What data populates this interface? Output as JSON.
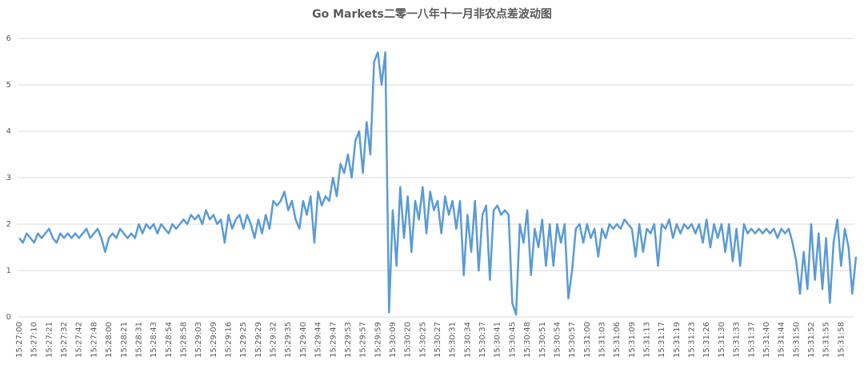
{
  "chart_data": {
    "type": "line",
    "title": "Go Markets二零一八年十一月非农点差波动图",
    "categories": [
      "15:27:00",
      null,
      null,
      null,
      "15:27:10",
      null,
      null,
      null,
      "15:27:21",
      null,
      null,
      null,
      "15:27:32",
      null,
      null,
      null,
      "15:27:42",
      null,
      null,
      null,
      "15:27:48",
      null,
      null,
      null,
      "15:28:00",
      null,
      null,
      null,
      "15:28:21",
      null,
      null,
      null,
      "15:28:31",
      null,
      null,
      null,
      "15:28:43",
      null,
      null,
      null,
      "15:28:54",
      null,
      null,
      null,
      "15:28:58",
      null,
      null,
      null,
      "15:29:03",
      null,
      null,
      null,
      "15:29:09",
      null,
      null,
      null,
      "15:29:16",
      null,
      null,
      null,
      "15:29:25",
      null,
      null,
      null,
      "15:29:29",
      null,
      null,
      null,
      "15:29:32",
      null,
      null,
      null,
      "15:29:35",
      null,
      null,
      null,
      "15:29:40",
      null,
      null,
      null,
      "15:29:44",
      null,
      null,
      null,
      "15:29:47",
      null,
      null,
      null,
      "15:29:53",
      null,
      null,
      null,
      "15:29:57",
      null,
      null,
      null,
      "15:29:59",
      null,
      null,
      null,
      "15:30:09",
      null,
      null,
      null,
      "15:30:20",
      null,
      null,
      null,
      "15:30:25",
      null,
      null,
      null,
      "15:30:27",
      null,
      null,
      null,
      "15:30:31",
      null,
      null,
      null,
      "15:30:34",
      null,
      null,
      null,
      "15:30:37",
      null,
      null,
      null,
      "15:30:41",
      null,
      null,
      null,
      "15:30:45",
      null,
      null,
      null,
      "15:30:48",
      null,
      null,
      null,
      "15:30:51",
      null,
      null,
      null,
      "15:30:54",
      null,
      null,
      null,
      "15:30:57",
      null,
      null,
      null,
      "15:31:00",
      null,
      null,
      null,
      "15:31:03",
      null,
      null,
      null,
      "15:31:06",
      null,
      null,
      null,
      "15:31:09",
      null,
      null,
      null,
      "15:31:13",
      null,
      null,
      null,
      "15:31:17",
      null,
      null,
      null,
      "15:31:19",
      null,
      null,
      null,
      "15:31:23",
      null,
      null,
      null,
      "15:31:26",
      null,
      null,
      null,
      "15:31:30",
      null,
      null,
      null,
      "15:31:33",
      null,
      null,
      null,
      "15:31:37",
      null,
      null,
      null,
      "15:31:40",
      null,
      null,
      null,
      "15:31:44",
      null,
      null,
      null,
      "15:31:50",
      null,
      null,
      null,
      "15:31:52",
      null,
      null,
      null,
      "15:31:55",
      null,
      null,
      null,
      "15:31:58",
      null,
      null,
      null,
      null
    ],
    "values": [
      1.7,
      1.6,
      1.8,
      1.7,
      1.6,
      1.8,
      1.7,
      1.8,
      1.9,
      1.7,
      1.6,
      1.8,
      1.7,
      1.8,
      1.7,
      1.8,
      1.7,
      1.8,
      1.9,
      1.7,
      1.8,
      1.9,
      1.7,
      1.4,
      1.7,
      1.8,
      1.7,
      1.9,
      1.8,
      1.7,
      1.8,
      1.7,
      2.0,
      1.8,
      2.0,
      1.9,
      2.0,
      1.8,
      2.0,
      1.9,
      1.8,
      2.0,
      1.9,
      2.0,
      2.1,
      2.0,
      2.2,
      2.1,
      2.2,
      2.0,
      2.3,
      2.1,
      2.2,
      2.0,
      2.1,
      1.6,
      2.2,
      1.9,
      2.1,
      2.2,
      1.9,
      2.2,
      2.0,
      1.7,
      2.1,
      1.8,
      2.2,
      1.9,
      2.5,
      2.4,
      2.5,
      2.7,
      2.3,
      2.5,
      2.1,
      1.9,
      2.5,
      2.2,
      2.6,
      1.6,
      2.7,
      2.4,
      2.6,
      2.5,
      3.0,
      2.6,
      3.3,
      3.1,
      3.5,
      3.0,
      3.8,
      4.0,
      3.1,
      4.2,
      3.5,
      5.5,
      5.7,
      5.0,
      5.7,
      0.1,
      2.3,
      1.1,
      2.8,
      1.7,
      2.6,
      1.4,
      2.5,
      2.1,
      2.8,
      1.8,
      2.7,
      2.3,
      2.5,
      1.8,
      2.6,
      2.2,
      2.5,
      1.9,
      2.5,
      0.9,
      2.2,
      1.4,
      2.5,
      1.0,
      2.2,
      2.4,
      0.8,
      2.3,
      2.4,
      2.2,
      2.3,
      2.2,
      0.3,
      0.05,
      2.0,
      1.6,
      2.3,
      0.9,
      1.9,
      1.5,
      2.1,
      1.1,
      2.0,
      1.1,
      2.0,
      1.6,
      2.0,
      0.4,
      1.0,
      1.9,
      2.0,
      1.6,
      2.0,
      1.7,
      1.9,
      1.3,
      1.9,
      1.7,
      2.0,
      1.9,
      2.0,
      1.9,
      2.1,
      2.0,
      1.9,
      1.3,
      2.0,
      1.4,
      1.9,
      1.8,
      2.0,
      1.1,
      2.0,
      1.9,
      2.1,
      1.7,
      2.0,
      1.8,
      2.0,
      1.9,
      2.0,
      1.8,
      2.0,
      1.6,
      2.1,
      1.5,
      2.0,
      1.7,
      2.0,
      1.4,
      2.0,
      1.2,
      1.9,
      1.1,
      2.0,
      1.8,
      1.9,
      1.8,
      1.9,
      1.8,
      1.9,
      1.8,
      1.9,
      1.7,
      1.9,
      1.8,
      1.9,
      1.6,
      1.2,
      0.5,
      1.4,
      0.6,
      2.0,
      0.8,
      1.8,
      0.6,
      1.7,
      0.3,
      1.6,
      2.1,
      1.1,
      1.9,
      1.5,
      0.5,
      1.3
    ],
    "color": "#5b9bd5",
    "ylim": [
      0,
      6
    ],
    "yticks": [
      0,
      1,
      2,
      3,
      4,
      5,
      6
    ],
    "grid": true
  }
}
